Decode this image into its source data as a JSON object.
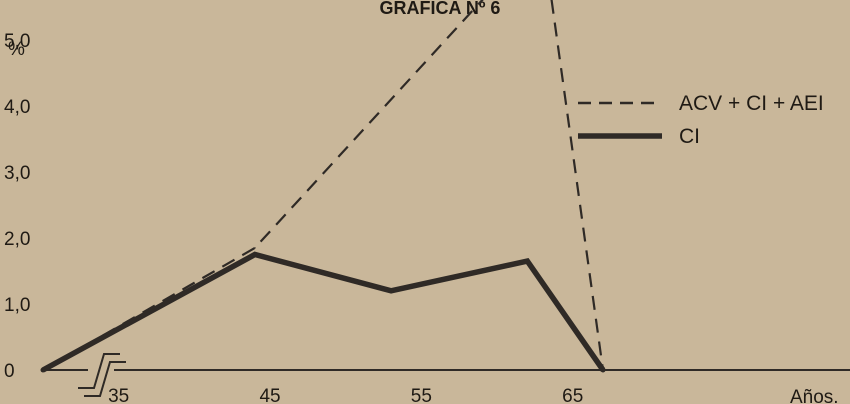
{
  "chart_data": {
    "type": "line",
    "title": "GRÁFICA Nº 6",
    "ylabel": "%",
    "xlabel": "Años.",
    "x": [
      30,
      44,
      63,
      67
    ],
    "x_ticks": [
      "35",
      "45",
      "55",
      "65"
    ],
    "y_ticks": [
      "0",
      "1,0",
      "2,0",
      "3,0",
      "4,0",
      "5,0"
    ],
    "xlim": [
      30,
      73
    ],
    "ylim": [
      0,
      6
    ],
    "grid": false,
    "legend_position": "top-right",
    "series": [
      {
        "name": "ACV + CI + AEI",
        "style": "dashed",
        "x": [
          30,
          44,
          63,
          67
        ],
        "values": [
          0,
          1.85,
          6.6,
          0
        ]
      },
      {
        "name": "CI",
        "style": "solid",
        "x": [
          30,
          44,
          53,
          62,
          67
        ],
        "values": [
          0,
          1.75,
          1.2,
          1.65,
          0
        ]
      }
    ],
    "color": "#2f2a26"
  }
}
